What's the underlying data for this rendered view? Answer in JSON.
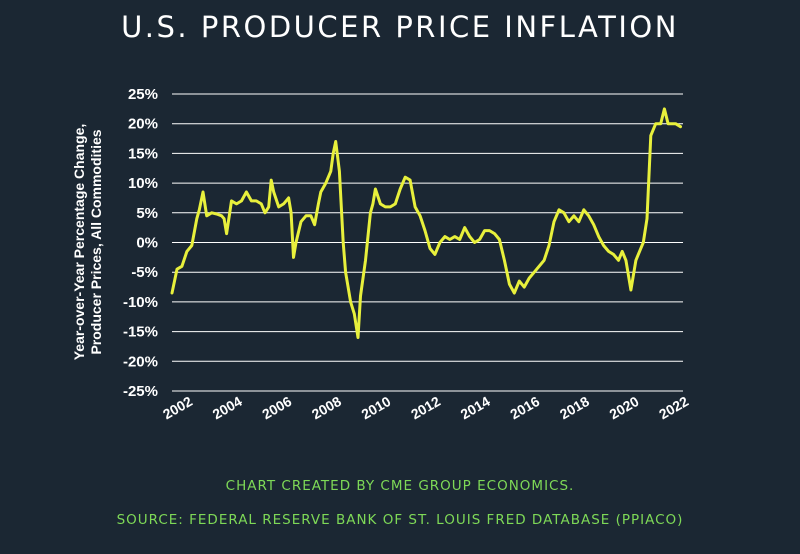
{
  "chart_data": {
    "type": "line",
    "title": "U.S. PRODUCER PRICE INFLATION",
    "ylabel": "Year-over-Year Percentage Change, Producer Prices, All Commodities",
    "xlabel": "",
    "ylim": [
      -25,
      25
    ],
    "xlim": [
      2002,
      2022.6
    ],
    "yticks": [
      "25%",
      "20%",
      "15%",
      "10%",
      "5%",
      "0%",
      "-5%",
      "-10%",
      "-15%",
      "-20%",
      "-25%"
    ],
    "xticks": [
      "2002",
      "2004",
      "2006",
      "2008",
      "2010",
      "2012",
      "2014",
      "2016",
      "2018",
      "2020",
      "2022"
    ],
    "grid": true,
    "line_color": "#e8f03c",
    "grid_color": "#ffffff",
    "series": [
      {
        "x": [
          2002.0,
          2002.2,
          2002.4,
          2002.6,
          2002.8,
          2003.0,
          2003.1,
          2003.25,
          2003.4,
          2003.6,
          2003.8,
          2004.0,
          2004.1,
          2004.2,
          2004.4,
          2004.6,
          2004.8,
          2005.0,
          2005.2,
          2005.4,
          2005.6,
          2005.75,
          2005.9,
          2006.0,
          2006.1,
          2006.3,
          2006.5,
          2006.7,
          2006.8,
          2006.9,
          2007.0,
          2007.2,
          2007.4,
          2007.6,
          2007.75,
          2007.9,
          2008.0,
          2008.2,
          2008.4,
          2008.5,
          2008.6,
          2008.75,
          2008.9,
          2009.0,
          2009.2,
          2009.35,
          2009.5,
          2009.6,
          2009.8,
          2010.0,
          2010.1,
          2010.2,
          2010.4,
          2010.6,
          2010.8,
          2011.0,
          2011.2,
          2011.4,
          2011.6,
          2011.8,
          2012.0,
          2012.2,
          2012.4,
          2012.6,
          2012.8,
          2013.0,
          2013.2,
          2013.4,
          2013.6,
          2013.8,
          2014.0,
          2014.2,
          2014.4,
          2014.6,
          2014.8,
          2015.0,
          2015.2,
          2015.4,
          2015.6,
          2015.8,
          2016.0,
          2016.2,
          2016.4,
          2016.6,
          2016.8,
          2017.0,
          2017.2,
          2017.4,
          2017.6,
          2017.8,
          2018.0,
          2018.2,
          2018.4,
          2018.6,
          2018.8,
          2019.0,
          2019.2,
          2019.4,
          2019.6,
          2019.8,
          2020.0,
          2020.15,
          2020.3,
          2020.5,
          2020.7,
          2020.9,
          2021.0,
          2021.15,
          2021.3,
          2021.5,
          2021.7,
          2021.85,
          2022.0,
          2022.1,
          2022.3,
          2022.5
        ],
        "y": [
          -8.5,
          -4.5,
          -4.0,
          -1.5,
          -0.5,
          4.0,
          5.5,
          8.5,
          4.5,
          5.0,
          4.8,
          4.5,
          4.0,
          1.5,
          7.0,
          6.5,
          7.0,
          8.5,
          7.0,
          7.0,
          6.5,
          5.0,
          6.0,
          10.5,
          8.5,
          6.0,
          6.5,
          7.5,
          5.0,
          -2.5,
          0.0,
          3.5,
          4.5,
          4.5,
          3.0,
          6.5,
          8.5,
          10.0,
          12.0,
          15.0,
          17.0,
          12.0,
          0.0,
          -5.0,
          -10.0,
          -12.0,
          -16.0,
          -9.0,
          -3.0,
          5.0,
          6.5,
          9.0,
          6.5,
          6.0,
          6.0,
          6.5,
          9.0,
          11.0,
          10.5,
          6.0,
          4.5,
          2.0,
          -1.0,
          -2.0,
          0.0,
          1.0,
          0.5,
          1.0,
          0.5,
          2.5,
          1.0,
          0.0,
          0.5,
          2.0,
          2.0,
          1.5,
          0.5,
          -3.0,
          -7.0,
          -8.5,
          -6.5,
          -7.5,
          -6.0,
          -5.0,
          -4.0,
          -3.0,
          -0.5,
          3.5,
          5.5,
          5.0,
          3.5,
          4.5,
          3.5,
          5.5,
          4.5,
          3.0,
          1.0,
          -0.5,
          -1.5,
          -2.0,
          -3.0,
          -1.5,
          -3.0,
          -8.0,
          -3.0,
          -1.0,
          0.0,
          4.0,
          18.0,
          20.0,
          20.0,
          22.5,
          20.0,
          20.0,
          20.0,
          19.5
        ]
      }
    ]
  },
  "notes": {
    "credit": "CHART CREATED BY CME GROUP ECONOMICS.",
    "source": "SOURCE: FEDERAL RESERVE BANK OF ST. LOUIS FRED DATABASE (PPIACO)"
  }
}
